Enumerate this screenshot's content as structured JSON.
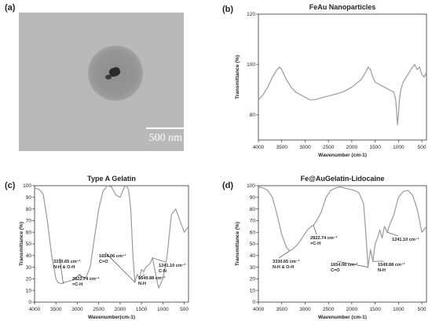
{
  "panels": {
    "a": {
      "letter": "(a)",
      "scale_label": "500 nm"
    },
    "b": {
      "letter": "(b)"
    },
    "c": {
      "letter": "(c)"
    },
    "d": {
      "letter": "(d)"
    }
  },
  "chart_data": [
    {
      "id": "b",
      "type": "line",
      "title": "FeAu Nanoparticles",
      "xlabel": "Wavenumber (cm-1)",
      "ylabel": "Transmittance (%)",
      "xlim": [
        4000,
        400
      ],
      "ylim": [
        70,
        120
      ],
      "xticks": [
        4000,
        3500,
        3000,
        2500,
        2000,
        1500,
        1000,
        500
      ],
      "yticks": [
        80,
        100,
        120
      ],
      "color": "#9a9a9a",
      "x": [
        4000,
        3900,
        3800,
        3700,
        3600,
        3550,
        3500,
        3450,
        3400,
        3300,
        3200,
        3100,
        3000,
        2900,
        2800,
        2600,
        2400,
        2200,
        2000,
        1800,
        1700,
        1650,
        1600,
        1550,
        1500,
        1400,
        1300,
        1200,
        1100,
        1060,
        1040,
        1020,
        1000,
        980,
        950,
        900,
        800,
        700,
        650,
        600,
        550,
        500,
        450,
        400
      ],
      "y": [
        86,
        88,
        91,
        95,
        98,
        99,
        98,
        96,
        94,
        91,
        89,
        88,
        87,
        86,
        86,
        87,
        88,
        89,
        91,
        94,
        97,
        99,
        98,
        95,
        93,
        92,
        91,
        90,
        89,
        86,
        81,
        76,
        80,
        86,
        90,
        93,
        96,
        99,
        100,
        98,
        99,
        96,
        95,
        97
      ],
      "annotations": []
    },
    {
      "id": "c",
      "type": "line",
      "title": "Type A Gelatin",
      "xlabel": "Wavenumber(cm-1)",
      "ylabel": "Transmittance (%)",
      "xlim": [
        4000,
        400
      ],
      "ylim": [
        0,
        100
      ],
      "xticks": [
        4000,
        3500,
        3000,
        2500,
        2000,
        1500,
        1000,
        500
      ],
      "yticks": [
        0,
        10,
        20,
        30,
        40,
        50,
        60,
        70,
        80,
        90,
        100
      ],
      "color": "#9a9a9a",
      "x": [
        4000,
        3900,
        3800,
        3700,
        3600,
        3500,
        3450,
        3400,
        3350,
        3300,
        3200,
        3100,
        3000,
        2950,
        2900,
        2850,
        2800,
        2700,
        2600,
        2500,
        2400,
        2300,
        2200,
        2100,
        2000,
        1900,
        1850,
        1800,
        1750,
        1700,
        1654,
        1600,
        1549,
        1500,
        1450,
        1400,
        1300,
        1241,
        1200,
        1100,
        1000,
        900,
        800,
        700,
        600,
        500,
        400
      ],
      "y": [
        98,
        97,
        93,
        70,
        40,
        20,
        17,
        16,
        16,
        17,
        18,
        19,
        22,
        24,
        22,
        20,
        21,
        30,
        55,
        80,
        95,
        100,
        99,
        92,
        90,
        99,
        100,
        96,
        80,
        40,
        17,
        24,
        20,
        28,
        26,
        30,
        33,
        38,
        30,
        12,
        20,
        40,
        75,
        80,
        70,
        60,
        65
      ],
      "annotations": [
        {
          "lines": [
            "3330.65 cm⁻¹",
            "N-H & O-H"
          ],
          "x": 3330,
          "y": 16
        },
        {
          "lines": [
            "2822.74 cm⁻¹",
            "=C-H"
          ],
          "x": 2822,
          "y": 21
        },
        {
          "lines": [
            "1654.06 cm⁻¹",
            "C=O"
          ],
          "x": 1654,
          "y": 17
        },
        {
          "lines": [
            "1549.88 cm⁻¹",
            "N-H"
          ],
          "x": 1549,
          "y": 20
        },
        {
          "lines": [
            "1241.10 cm⁻¹",
            "C-N"
          ],
          "x": 1241,
          "y": 38
        }
      ]
    },
    {
      "id": "d",
      "type": "line",
      "title": "Fe@AuGelatin-Lidocaine",
      "xlabel": "Wavenumber (cm-1)",
      "ylabel": "Transmittance (%)",
      "xlim": [
        4000,
        400
      ],
      "ylim": [
        0,
        100
      ],
      "xticks": [
        4000,
        3500,
        3000,
        2500,
        2000,
        1500,
        1000,
        500
      ],
      "yticks": [
        0,
        10,
        20,
        30,
        40,
        50,
        60,
        70,
        80,
        90,
        100
      ],
      "color": "#9a9a9a",
      "x": [
        4000,
        3900,
        3800,
        3700,
        3600,
        3500,
        3400,
        3330,
        3250,
        3150,
        3050,
        2950,
        2900,
        2822,
        2750,
        2650,
        2550,
        2450,
        2350,
        2250,
        2150,
        2050,
        1950,
        1850,
        1750,
        1700,
        1654,
        1600,
        1549,
        1500,
        1450,
        1400,
        1350,
        1300,
        1241,
        1200,
        1100,
        1000,
        900,
        800,
        700,
        600,
        500,
        400
      ],
      "y": [
        99,
        98,
        96,
        90,
        75,
        58,
        47,
        44,
        46,
        50,
        56,
        62,
        64,
        66,
        70,
        78,
        90,
        96,
        98,
        99,
        98,
        97,
        96,
        94,
        85,
        60,
        30,
        45,
        35,
        50,
        55,
        62,
        55,
        65,
        60,
        65,
        75,
        90,
        95,
        96,
        92,
        80,
        60,
        65
      ],
      "annotations": [
        {
          "lines": [
            "3330.65 cm⁻¹",
            "N-H & O-H"
          ],
          "x": 3330,
          "y": 44
        },
        {
          "lines": [
            "2822.74 cm⁻¹",
            "=C-H"
          ],
          "x": 2822,
          "y": 66
        },
        {
          "lines": [
            "1654.06 cm⁻¹",
            "C=O"
          ],
          "x": 1654,
          "y": 30
        },
        {
          "lines": [
            "1549.88 cm⁻¹",
            "N-H"
          ],
          "x": 1549,
          "y": 35
        },
        {
          "lines": [
            "1241.10 cm⁻¹"
          ],
          "x": 1241,
          "y": 60
        }
      ]
    }
  ]
}
